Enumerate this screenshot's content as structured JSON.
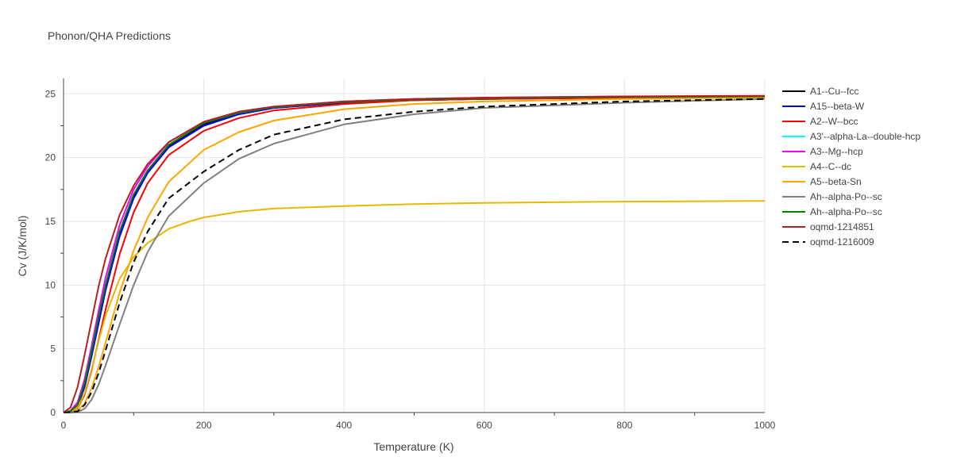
{
  "chart_data": {
    "type": "line",
    "title": "Phonon/QHA Predictions",
    "xlabel": "Temperature (K)",
    "ylabel": "Cv (J/K/mol)",
    "xlim": [
      0,
      1000
    ],
    "ylim": [
      0,
      26.2
    ],
    "xticks": [
      0,
      200,
      400,
      600,
      800,
      1000
    ],
    "yticks": [
      0,
      5,
      10,
      15,
      20,
      25
    ],
    "grid": true,
    "legend_position": "top-right",
    "series": [
      {
        "name": "A1--Cu--fcc",
        "color": "#000000",
        "dash": "solid",
        "x": [
          0,
          10,
          20,
          30,
          40,
          50,
          60,
          80,
          100,
          120,
          150,
          200,
          250,
          300,
          400,
          500,
          600,
          800,
          1000
        ],
        "y": [
          0,
          0.1,
          0.6,
          2.2,
          4.6,
          7.3,
          9.8,
          14.0,
          16.9,
          18.9,
          20.9,
          22.6,
          23.4,
          23.9,
          24.3,
          24.5,
          24.6,
          24.7,
          24.8
        ]
      },
      {
        "name": "A15--beta-W",
        "color": "#0000ff",
        "dash": "solid",
        "x": [
          0,
          10,
          20,
          30,
          40,
          50,
          60,
          80,
          100,
          120,
          150,
          200,
          250,
          300,
          400,
          500,
          600,
          800,
          1000
        ],
        "y": [
          0,
          0.1,
          0.5,
          2.0,
          4.4,
          7.0,
          9.6,
          13.8,
          16.8,
          18.8,
          20.8,
          22.5,
          23.4,
          23.9,
          24.3,
          24.5,
          24.6,
          24.7,
          24.8
        ]
      },
      {
        "name": "A2--W--bcc",
        "color": "#ff0000",
        "dash": "solid",
        "x": [
          0,
          10,
          20,
          30,
          40,
          50,
          60,
          80,
          100,
          120,
          150,
          200,
          250,
          300,
          400,
          500,
          600,
          800,
          1000
        ],
        "y": [
          0,
          0.05,
          0.35,
          1.4,
          3.3,
          5.7,
          8.1,
          12.4,
          15.7,
          18.0,
          20.2,
          22.1,
          23.1,
          23.7,
          24.2,
          24.5,
          24.6,
          24.7,
          24.8
        ]
      },
      {
        "name": "A3'--alpha-La--double-hcp",
        "color": "#00ffff",
        "dash": "solid",
        "x": [
          0,
          10,
          20,
          30,
          40,
          50,
          60,
          80,
          100,
          120,
          150,
          200,
          250,
          300,
          400,
          500,
          600,
          800,
          1000
        ],
        "y": [
          0,
          0.15,
          0.8,
          2.6,
          5.2,
          8.0,
          10.6,
          14.7,
          17.5,
          19.3,
          21.2,
          22.8,
          23.6,
          24.0,
          24.4,
          24.6,
          24.7,
          24.8,
          24.8
        ]
      },
      {
        "name": "A3--Mg--hcp",
        "color": "#ff00ff",
        "dash": "solid",
        "x": [
          0,
          10,
          20,
          30,
          40,
          50,
          60,
          80,
          100,
          120,
          150,
          200,
          250,
          300,
          400,
          500,
          600,
          800,
          1000
        ],
        "y": [
          0,
          0.15,
          0.8,
          2.6,
          5.2,
          8.0,
          10.6,
          14.7,
          17.5,
          19.3,
          21.2,
          22.8,
          23.6,
          24.0,
          24.4,
          24.6,
          24.7,
          24.8,
          24.8
        ]
      },
      {
        "name": "A4--C--dc",
        "color": "#e6b800",
        "dash": "solid",
        "x": [
          0,
          10,
          20,
          30,
          40,
          50,
          60,
          80,
          100,
          120,
          150,
          180,
          200,
          250,
          300,
          400,
          500,
          600,
          800,
          1000
        ],
        "y": [
          0,
          0.05,
          0.4,
          1.5,
          3.4,
          5.6,
          7.6,
          10.5,
          12.2,
          13.3,
          14.4,
          15.0,
          15.3,
          15.75,
          16.0,
          16.2,
          16.35,
          16.45,
          16.55,
          16.6
        ]
      },
      {
        "name": "A5--beta-Sn",
        "color": "#ffa500",
        "dash": "solid",
        "x": [
          0,
          10,
          20,
          30,
          40,
          50,
          60,
          80,
          100,
          120,
          150,
          200,
          250,
          300,
          400,
          500,
          600,
          800,
          1000
        ],
        "y": [
          0,
          0.02,
          0.15,
          0.7,
          1.9,
          3.6,
          5.5,
          9.4,
          12.7,
          15.3,
          18.1,
          20.6,
          22.0,
          22.9,
          23.8,
          24.2,
          24.4,
          24.6,
          24.7
        ]
      },
      {
        "name": "Ah--alpha-Po--sc",
        "color": "#808080",
        "dash": "solid",
        "x": [
          0,
          10,
          20,
          30,
          40,
          50,
          60,
          80,
          100,
          120,
          150,
          200,
          250,
          300,
          400,
          500,
          600,
          800,
          1000
        ],
        "y": [
          0,
          0,
          0.05,
          0.3,
          1.0,
          2.2,
          3.7,
          6.9,
          10.0,
          12.6,
          15.4,
          18.0,
          19.9,
          21.1,
          22.6,
          23.4,
          23.9,
          24.3,
          24.6
        ]
      },
      {
        "name": "Ah--alpha-Po--sc",
        "color": "#008000",
        "dash": "solid",
        "x": [
          0,
          10,
          20,
          30,
          40,
          50,
          60,
          80,
          100,
          120,
          150,
          200,
          250,
          300,
          400,
          500,
          600,
          800,
          1000
        ],
        "y": [
          0,
          0.1,
          0.6,
          2.3,
          4.8,
          7.5,
          10.0,
          14.2,
          17.1,
          19.0,
          21.0,
          22.7,
          23.5,
          23.95,
          24.35,
          24.55,
          24.65,
          24.75,
          24.8
        ]
      },
      {
        "name": "oqmd-1214851",
        "color": "#b22222",
        "dash": "solid",
        "x": [
          0,
          10,
          20,
          30,
          40,
          50,
          60,
          80,
          100,
          120,
          150,
          200,
          250,
          300,
          400,
          500,
          600,
          800,
          1000
        ],
        "y": [
          0,
          0.4,
          2.0,
          4.5,
          7.2,
          9.9,
          12.1,
          15.5,
          17.8,
          19.5,
          21.2,
          22.8,
          23.6,
          24.0,
          24.4,
          24.6,
          24.7,
          24.8,
          24.85
        ]
      },
      {
        "name": "oqmd-1216009",
        "color": "#000000",
        "dash": "dash",
        "x": [
          0,
          10,
          20,
          30,
          40,
          50,
          60,
          80,
          100,
          120,
          150,
          200,
          250,
          300,
          400,
          500,
          600,
          800,
          1000
        ],
        "y": [
          0,
          0.01,
          0.1,
          0.6,
          1.6,
          3.1,
          4.9,
          8.6,
          11.8,
          14.2,
          16.8,
          18.9,
          20.6,
          21.8,
          23.0,
          23.6,
          24.0,
          24.4,
          24.6
        ]
      }
    ]
  }
}
